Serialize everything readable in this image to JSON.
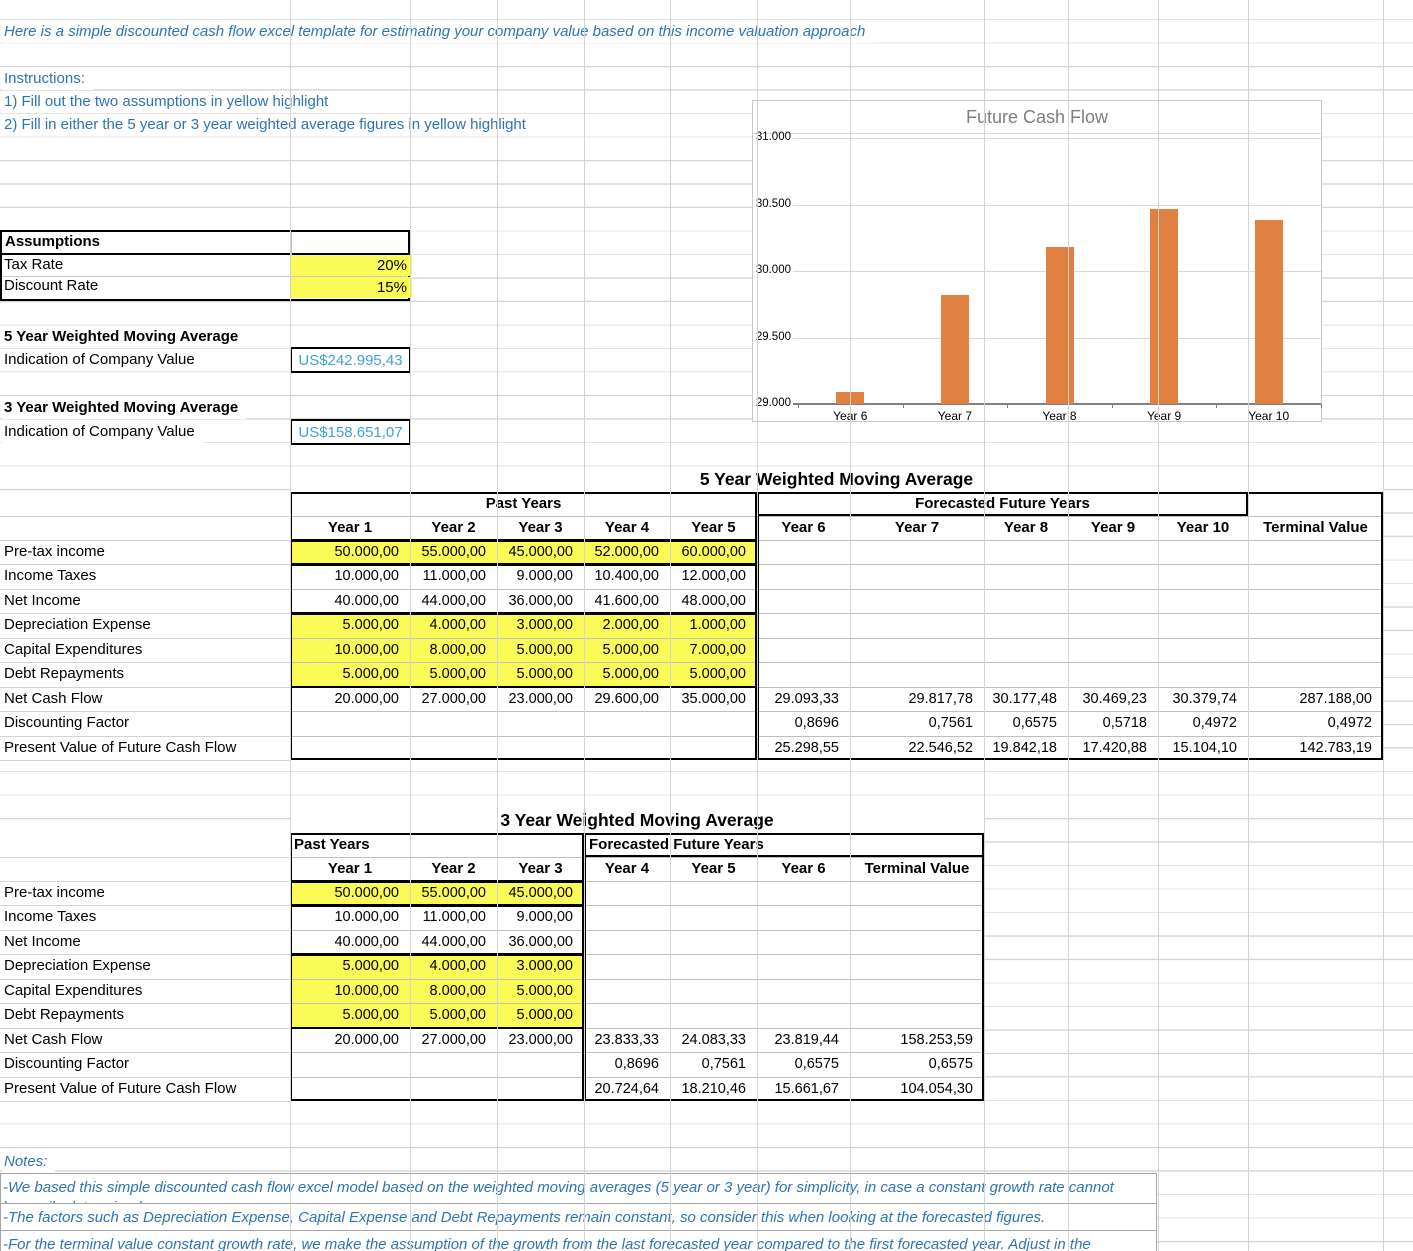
{
  "colors": {
    "accent_blue": "#2e74b5",
    "value_blue": "#41a1dc",
    "highlight_yellow": "#fbfb57",
    "bar_orange": "#e08142"
  },
  "intro": {
    "title": "Here is a simple discounted cash flow excel template for estimating your company value based on this income valuation approach",
    "instructions_label": "Instructions:",
    "instructions": [
      "1) Fill out the two assumptions in yellow highlight",
      "2) Fill in either the 5 year or 3 year weighted average figures in yellow highlight"
    ]
  },
  "assumptions": {
    "title": "Assumptions",
    "rows": [
      {
        "label": "Tax Rate",
        "value": "20%"
      },
      {
        "label": "Discount Rate",
        "value": "15%"
      }
    ]
  },
  "valuations": [
    {
      "title": "5 Year Weighted Moving Average",
      "label": "Indication of Company Value",
      "value": "US$242.995,43"
    },
    {
      "title": "3 Year Weighted Moving Average",
      "label": "Indication of Company Value",
      "value": "US$158.651,07"
    }
  ],
  "chart_data": {
    "type": "bar",
    "title": "Future Cash Flow",
    "categories": [
      "Year 6",
      "Year 7",
      "Year 8",
      "Year 9",
      "Year 10"
    ],
    "values": [
      29093.33,
      29817.78,
      30177.48,
      30469.23,
      30379.74
    ],
    "ylim": [
      29000,
      31000
    ],
    "ytick_step": 500,
    "ytick_labels": [
      "29.000",
      "29.500",
      "30.000",
      "30.500",
      "31.000"
    ],
    "grid": true,
    "legend": false,
    "bar_color": "#e08142"
  },
  "row_labels": [
    "Pre-tax income",
    "Income Taxes",
    "Net Income",
    "Depreciation Expense",
    "Capital Expenditures",
    "Debt Repayments",
    "Net Cash Flow",
    "Discounting Factor",
    "Present Value of Future Cash Flow"
  ],
  "table5": {
    "title": "5 Year Weighted Moving Average",
    "group_past": "Past Years",
    "group_future": "Forecasted Future Years",
    "col_headers": [
      "Year 1",
      "Year 2",
      "Year 3",
      "Year 4",
      "Year 5",
      "Year 6",
      "Year 7",
      "Year 8",
      "Year 9",
      "Year 10",
      "Terminal Value"
    ],
    "rows": [
      [
        "50.000,00",
        "55.000,00",
        "45.000,00",
        "52.000,00",
        "60.000,00",
        "",
        "",
        "",
        "",
        "",
        ""
      ],
      [
        "10.000,00",
        "11.000,00",
        "9.000,00",
        "10.400,00",
        "12.000,00",
        "",
        "",
        "",
        "",
        "",
        ""
      ],
      [
        "40.000,00",
        "44.000,00",
        "36.000,00",
        "41.600,00",
        "48.000,00",
        "",
        "",
        "",
        "",
        "",
        ""
      ],
      [
        "5.000,00",
        "4.000,00",
        "3.000,00",
        "2.000,00",
        "1.000,00",
        "",
        "",
        "",
        "",
        "",
        ""
      ],
      [
        "10.000,00",
        "8.000,00",
        "5.000,00",
        "5.000,00",
        "7.000,00",
        "",
        "",
        "",
        "",
        "",
        ""
      ],
      [
        "5.000,00",
        "5.000,00",
        "5.000,00",
        "5.000,00",
        "5.000,00",
        "",
        "",
        "",
        "",
        "",
        ""
      ],
      [
        "20.000,00",
        "27.000,00",
        "23.000,00",
        "29.600,00",
        "35.000,00",
        "29.093,33",
        "29.817,78",
        "30.177,48",
        "30.469,23",
        "30.379,74",
        "287.188,00"
      ],
      [
        "",
        "",
        "",
        "",
        "",
        "0,8696",
        "0,7561",
        "0,6575",
        "0,5718",
        "0,4972",
        "0,4972"
      ],
      [
        "",
        "",
        "",
        "",
        "",
        "25.298,55",
        "22.546,52",
        "19.842,18",
        "17.420,88",
        "15.104,10",
        "142.783,19"
      ]
    ]
  },
  "table3": {
    "title": "3 Year Weighted Moving Average",
    "group_past": "Past Years",
    "group_future": "Forecasted Future Years",
    "col_headers": [
      "Year 1",
      "Year 2",
      "Year 3",
      "Year 4",
      "Year 5",
      "Year 6",
      "Terminal Value"
    ],
    "rows": [
      [
        "50.000,00",
        "55.000,00",
        "45.000,00",
        "",
        "",
        "",
        ""
      ],
      [
        "10.000,00",
        "11.000,00",
        "9.000,00",
        "",
        "",
        "",
        ""
      ],
      [
        "40.000,00",
        "44.000,00",
        "36.000,00",
        "",
        "",
        "",
        ""
      ],
      [
        "5.000,00",
        "4.000,00",
        "3.000,00",
        "",
        "",
        "",
        ""
      ],
      [
        "10.000,00",
        "8.000,00",
        "5.000,00",
        "",
        "",
        "",
        ""
      ],
      [
        "5.000,00",
        "5.000,00",
        "5.000,00",
        "",
        "",
        "",
        ""
      ],
      [
        "20.000,00",
        "27.000,00",
        "23.000,00",
        "23.833,33",
        "24.083,33",
        "23.819,44",
        "158.253,59"
      ],
      [
        "",
        "",
        "",
        "0,8696",
        "0,7561",
        "0,6575",
        "0,6575"
      ],
      [
        "",
        "",
        "",
        "20.724,64",
        "18.210,46",
        "15.661,67",
        "104.054,30"
      ]
    ]
  },
  "notes": {
    "label": "Notes:",
    "items": [
      "-We based this simple discounted cash flow excel model based on the weighted moving averages (5 year or 3 year) for simplicity, in case a constant growth rate cannot\nbe easily determined",
      "-The factors such as Depreciation Expense, Capital Expense and Debt Repayments remain constant, so consider this when looking at the forecasted figures.",
      "-For the terminal value constant growth rate, we make the assumption of the growth from the last forecasted year compared to the first forecasted year. Adjust in the"
    ]
  }
}
